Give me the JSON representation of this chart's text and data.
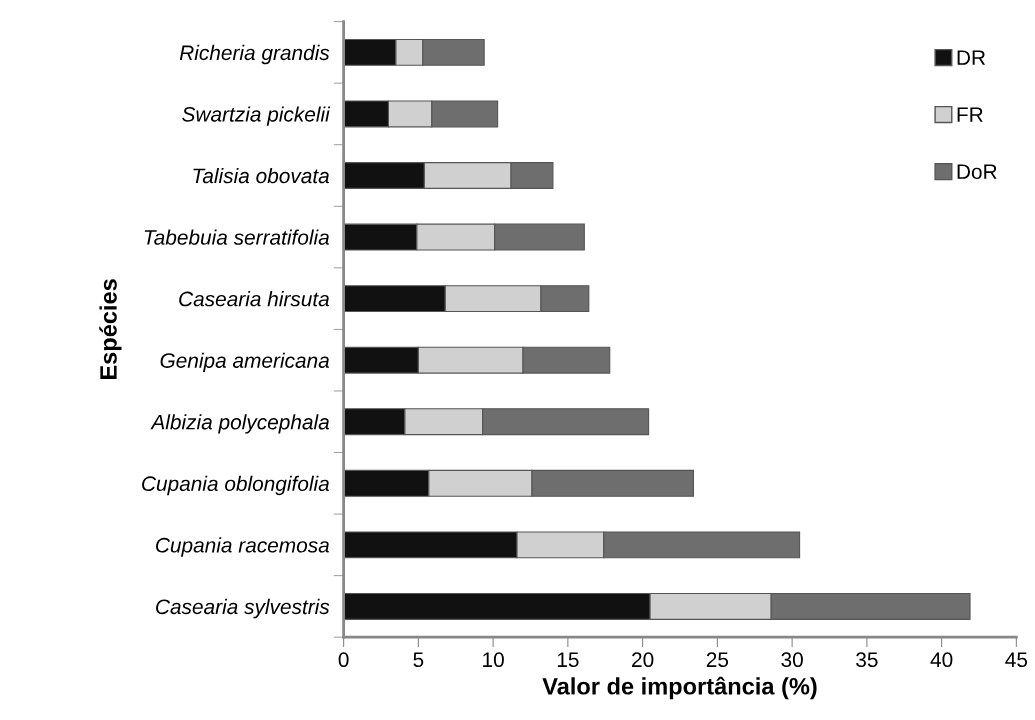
{
  "chart_data": {
    "type": "bar",
    "orientation": "horizontal",
    "stacked": true,
    "xlabel": "Valor de importância (%)",
    "ylabel": "Espécies",
    "categories": [
      "Richeria grandis",
      "Swartzia pickelii",
      "Talisia obovata",
      "Tabebuia serratifolia",
      "Casearia hirsuta",
      "Genipa americana",
      "Albizia polycephala",
      "Cupania oblongifolia",
      "Cupania racemosa",
      "Casearia sylvestris"
    ],
    "series": [
      {
        "name": "DR",
        "color": "#111111",
        "values": [
          3.5,
          3.0,
          5.4,
          4.9,
          6.8,
          5.0,
          4.1,
          5.7,
          11.6,
          20.5
        ]
      },
      {
        "name": "FR",
        "color": "#d0d0d0",
        "values": [
          1.8,
          2.9,
          5.8,
          5.2,
          6.4,
          7.0,
          5.2,
          6.9,
          5.8,
          8.1
        ]
      },
      {
        "name": "DoR",
        "color": "#6e6e6e",
        "values": [
          4.1,
          4.4,
          2.8,
          6.0,
          3.2,
          5.8,
          11.1,
          10.8,
          13.1,
          13.3
        ]
      }
    ],
    "xlim": [
      0,
      45
    ],
    "xticks": [
      0,
      5,
      10,
      15,
      20,
      25,
      30,
      35,
      40,
      45
    ],
    "grid": false,
    "legend": "top right"
  }
}
